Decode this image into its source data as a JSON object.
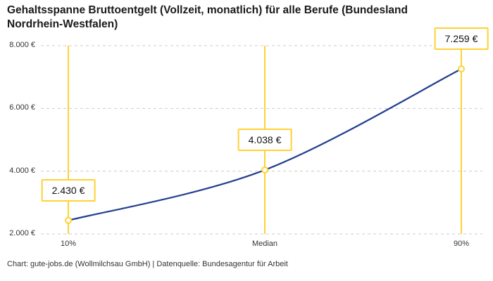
{
  "chart_data": {
    "type": "line",
    "title": "Gehaltsspanne Bruttoentgelt (Vollzeit, monatlich) für alle Berufe (Bundesland Nordrhein-Westfalen)",
    "categories": [
      "10%",
      "Median",
      "90%"
    ],
    "values": [
      2430,
      4038,
      7259
    ],
    "value_labels": [
      "2.430 €",
      "4.038 €",
      "7.259 €"
    ],
    "y_ticks": [
      {
        "value": 8000,
        "label": "8.000 €"
      },
      {
        "value": 6000,
        "label": "6.000 €"
      },
      {
        "value": 4000,
        "label": "4.000 €"
      },
      {
        "value": 2000,
        "label": "2.000 €"
      }
    ],
    "ylim": [
      2000,
      8000
    ],
    "xlabel": "",
    "ylabel": "",
    "grid": "horizontal-dashed",
    "legend": "none",
    "footer": "Chart: gute-jobs.de (Wollmilchsau GmbH) | Datenquelle: Bundesagentur für Arbeit",
    "colors": {
      "line": "#24408e",
      "accent": "#ffd234",
      "grid": "#cccccc",
      "text": "#1a1a1a"
    }
  }
}
